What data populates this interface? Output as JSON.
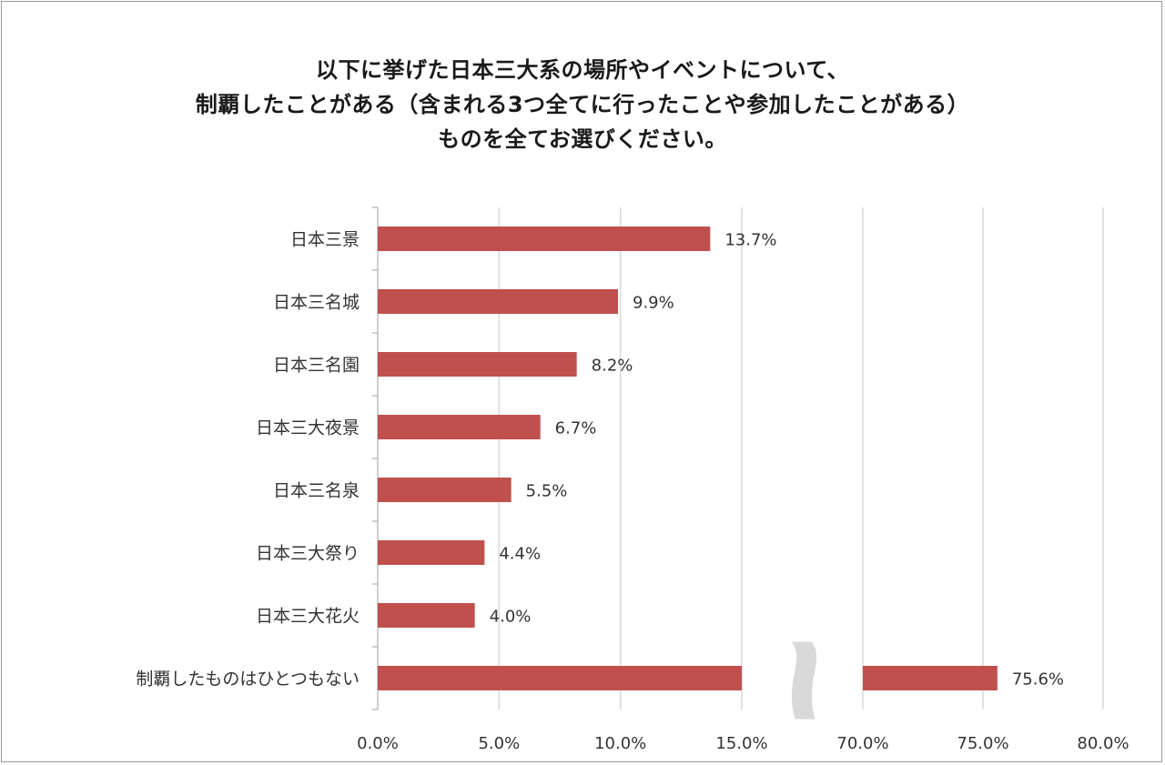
{
  "chart_data": {
    "type": "bar",
    "orientation": "horizontal",
    "title_lines": [
      "以下に挙げた日本三大系の場所やイベントについて、",
      "制覇したことがある（含まれる3つ全てに行ったことや参加したことがある）",
      "ものを全てお選びください。"
    ],
    "categories": [
      "日本三景",
      "日本三名城",
      "日本三名園",
      "日本三大夜景",
      "日本三名泉",
      "日本三大祭り",
      "日本三大花火",
      "制覇したものはひとつもない"
    ],
    "values": [
      13.7,
      9.9,
      8.2,
      6.7,
      5.5,
      4.4,
      4.0,
      75.6
    ],
    "value_labels": [
      "13.7%",
      "9.9%",
      "8.2%",
      "6.7%",
      "5.5%",
      "4.4%",
      "4.0%",
      "75.6%"
    ],
    "axis_break": {
      "from": 15.0,
      "to": 70.0
    },
    "xlim_segments": [
      [
        0,
        15
      ],
      [
        70,
        80
      ]
    ],
    "x_ticks": [
      "0.0%",
      "5.0%",
      "10.0%",
      "15.0%",
      "70.0%",
      "75.0%",
      "80.0%"
    ],
    "bar_color": "#c0504d",
    "grid": true,
    "legend": "none"
  }
}
